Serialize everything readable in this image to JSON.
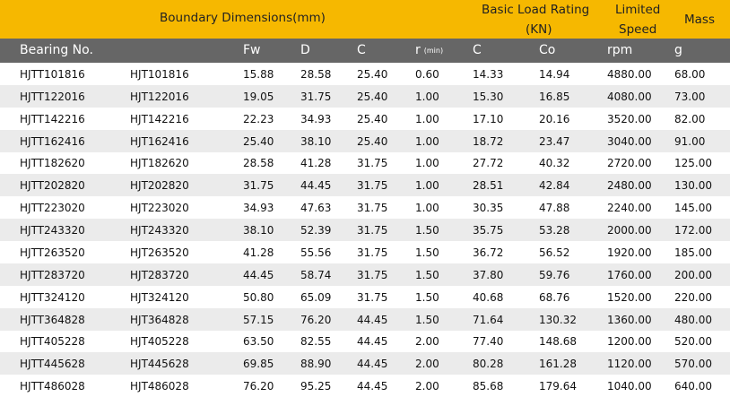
{
  "header_top": {
    "boundary": "Boundary Dimensions(mm)",
    "load_rating": "Basic Load Rating",
    "load_unit": "(KN)",
    "speed_1": "Limited",
    "speed_2": "Speed",
    "mass": "Mass"
  },
  "header": [
    {
      "text": "Bearing No."
    },
    {
      "text": "Fw"
    },
    {
      "text": "D"
    },
    {
      "text": "C"
    },
    {
      "text": "r",
      "sub": "(min)"
    },
    {
      "text": "C"
    },
    {
      "text": "Co"
    },
    {
      "text": "rpm"
    },
    {
      "text": "g"
    }
  ],
  "rows": [
    [
      "HJTT101816",
      "HJT101816",
      "15.88",
      "28.58",
      "25.40",
      "0.60",
      "14.33",
      "14.94",
      "4880.00",
      "68.00"
    ],
    [
      "HJTT122016",
      "HJT122016",
      "19.05",
      "31.75",
      "25.40",
      "1.00",
      "15.30",
      "16.85",
      "4080.00",
      "73.00"
    ],
    [
      "HJTT142216",
      "HJT142216",
      "22.23",
      "34.93",
      "25.40",
      "1.00",
      "17.10",
      "20.16",
      "3520.00",
      "82.00"
    ],
    [
      "HJTT162416",
      "HJT162416",
      "25.40",
      "38.10",
      "25.40",
      "1.00",
      "18.72",
      "23.47",
      "3040.00",
      "91.00"
    ],
    [
      "HJTT182620",
      "HJT182620",
      "28.58",
      "41.28",
      "31.75",
      "1.00",
      "27.72",
      "40.32",
      "2720.00",
      "125.00"
    ],
    [
      "HJTT202820",
      "HJT202820",
      "31.75",
      "44.45",
      "31.75",
      "1.00",
      "28.51",
      "42.84",
      "2480.00",
      "130.00"
    ],
    [
      "HJTT223020",
      "HJT223020",
      "34.93",
      "47.63",
      "31.75",
      "1.00",
      "30.35",
      "47.88",
      "2240.00",
      "145.00"
    ],
    [
      "HJTT243320",
      "HJT243320",
      "38.10",
      "52.39",
      "31.75",
      "1.50",
      "35.75",
      "53.28",
      "2000.00",
      "172.00"
    ],
    [
      "HJTT263520",
      "HJT263520",
      "41.28",
      "55.56",
      "31.75",
      "1.50",
      "36.72",
      "56.52",
      "1920.00",
      "185.00"
    ],
    [
      "HJTT283720",
      "HJT283720",
      "44.45",
      "58.74",
      "31.75",
      "1.50",
      "37.80",
      "59.76",
      "1760.00",
      "200.00"
    ],
    [
      "HJTT324120",
      "HJT324120",
      "50.80",
      "65.09",
      "31.75",
      "1.50",
      "40.68",
      "68.76",
      "1520.00",
      "220.00"
    ],
    [
      "HJTT364828",
      "HJT364828",
      "57.15",
      "76.20",
      "44.45",
      "1.50",
      "71.64",
      "130.32",
      "1360.00",
      "480.00"
    ],
    [
      "HJTT405228",
      "HJT405228",
      "63.50",
      "82.55",
      "44.45",
      "2.00",
      "77.40",
      "148.68",
      "1200.00",
      "520.00"
    ],
    [
      "HJTT445628",
      "HJT445628",
      "69.85",
      "88.90",
      "44.45",
      "2.00",
      "80.28",
      "161.28",
      "1120.00",
      "570.00"
    ],
    [
      "HJTT486028",
      "HJT486028",
      "76.20",
      "95.25",
      "44.45",
      "2.00",
      "85.68",
      "179.64",
      "1040.00",
      "640.00"
    ]
  ]
}
